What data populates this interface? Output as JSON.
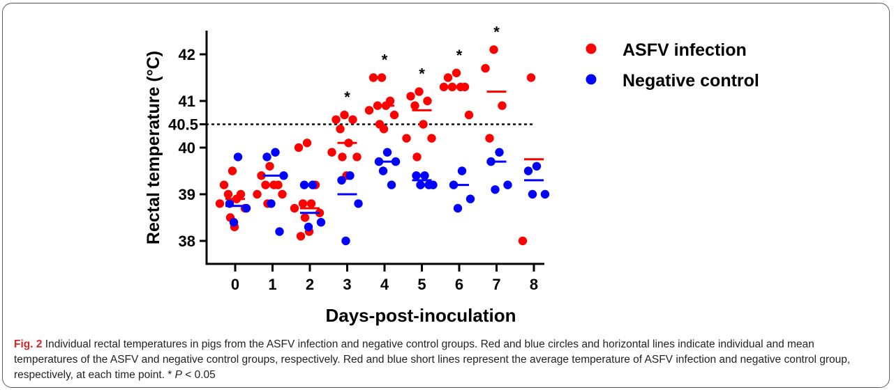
{
  "chart_data": {
    "type": "scatter",
    "xlabel": "Days-post-inoculation",
    "ylabel": "Rectal temperature (°C)",
    "categories": [
      "0",
      "1",
      "2",
      "3",
      "4",
      "5",
      "6",
      "7",
      "8"
    ],
    "ylim": [
      37.5,
      42.5
    ],
    "yticks": [
      38,
      39,
      40,
      41,
      42
    ],
    "ytick_labels": [
      "38",
      "39",
      "40",
      "41",
      "42"
    ],
    "threshold": {
      "value": 40.5,
      "label": "40.5",
      "style": "dotted"
    },
    "significance": {
      "days": [
        3,
        4,
        5,
        6,
        7
      ],
      "marker": "*"
    },
    "legend_position": "top-right",
    "series": [
      {
        "name": "ASFV infection",
        "color": "#ff0000",
        "means": [
          38.9,
          39.2,
          38.7,
          40.1,
          40.9,
          40.8,
          41.3,
          41.2,
          39.75
        ],
        "points": [
          [
            0,
            39.5
          ],
          [
            0,
            39.2
          ],
          [
            0,
            39.0
          ],
          [
            0,
            39.0
          ],
          [
            0,
            38.9
          ],
          [
            0,
            38.8
          ],
          [
            0,
            38.7
          ],
          [
            0,
            38.5
          ],
          [
            0,
            38.3
          ],
          [
            1,
            39.6
          ],
          [
            1,
            39.4
          ],
          [
            1,
            39.2
          ],
          [
            1,
            39.2
          ],
          [
            1,
            39.2
          ],
          [
            1,
            39.0
          ],
          [
            1,
            39.0
          ],
          [
            1,
            38.8
          ],
          [
            2,
            40.1
          ],
          [
            2,
            40.0
          ],
          [
            2,
            39.2
          ],
          [
            2,
            38.8
          ],
          [
            2,
            38.8
          ],
          [
            2,
            38.7
          ],
          [
            2,
            38.6
          ],
          [
            2,
            38.5
          ],
          [
            2,
            38.2
          ],
          [
            2,
            38.1
          ],
          [
            3,
            40.7
          ],
          [
            3,
            40.6
          ],
          [
            3,
            40.6
          ],
          [
            3,
            40.4
          ],
          [
            3,
            40.1
          ],
          [
            3,
            39.9
          ],
          [
            3,
            39.8
          ],
          [
            3,
            39.8
          ],
          [
            3,
            39.4
          ],
          [
            4,
            41.5
          ],
          [
            4,
            41.5
          ],
          [
            4,
            41.0
          ],
          [
            4,
            40.9
          ],
          [
            4,
            40.9
          ],
          [
            4,
            40.8
          ],
          [
            4,
            40.7
          ],
          [
            4,
            40.5
          ],
          [
            4,
            40.4
          ],
          [
            5,
            41.2
          ],
          [
            5,
            41.1
          ],
          [
            5,
            41.0
          ],
          [
            5,
            40.9
          ],
          [
            5,
            40.5
          ],
          [
            5,
            40.2
          ],
          [
            5,
            40.2
          ],
          [
            5,
            39.8
          ],
          [
            6,
            41.6
          ],
          [
            6,
            41.5
          ],
          [
            6,
            41.3
          ],
          [
            6,
            41.3
          ],
          [
            6,
            41.3
          ],
          [
            6,
            41.3
          ],
          [
            6,
            40.7
          ],
          [
            7,
            42.1
          ],
          [
            7,
            41.7
          ],
          [
            7,
            40.9
          ],
          [
            7,
            40.2
          ],
          [
            8,
            41.5
          ],
          [
            8,
            38.0
          ]
        ]
      },
      {
        "name": "Negative control",
        "color": "#0000ff",
        "means": [
          38.75,
          39.4,
          38.6,
          39.0,
          39.7,
          39.3,
          39.2,
          39.7,
          39.3
        ],
        "points": [
          [
            0,
            39.8
          ],
          [
            0,
            38.8
          ],
          [
            0,
            38.7
          ],
          [
            0,
            38.4
          ],
          [
            1,
            39.9
          ],
          [
            1,
            39.8
          ],
          [
            1,
            39.4
          ],
          [
            1,
            38.8
          ],
          [
            1,
            38.2
          ],
          [
            2,
            39.2
          ],
          [
            2,
            39.2
          ],
          [
            2,
            38.4
          ],
          [
            2,
            38.3
          ],
          [
            3,
            39.4
          ],
          [
            3,
            39.3
          ],
          [
            3,
            38.8
          ],
          [
            3,
            38.0
          ],
          [
            4,
            39.9
          ],
          [
            4,
            39.7
          ],
          [
            4,
            39.7
          ],
          [
            4,
            39.5
          ],
          [
            4,
            39.2
          ],
          [
            5,
            39.4
          ],
          [
            5,
            39.4
          ],
          [
            5,
            39.2
          ],
          [
            5,
            39.2
          ],
          [
            5,
            39.2
          ],
          [
            6,
            39.5
          ],
          [
            6,
            39.2
          ],
          [
            6,
            38.9
          ],
          [
            6,
            38.7
          ],
          [
            7,
            39.9
          ],
          [
            7,
            39.7
          ],
          [
            7,
            39.2
          ],
          [
            7,
            39.1
          ],
          [
            8,
            39.6
          ],
          [
            8,
            39.5
          ],
          [
            8,
            39.0
          ],
          [
            8,
            39.0
          ]
        ]
      }
    ]
  },
  "caption": {
    "label": "Fig. 2",
    "text": " Individual rectal temperatures in pigs from the ASFV infection and negative control groups. Red and blue circles and horizontal lines indicate individual and mean temperatures of the ASFV and negative control groups, respectively. Red and blue short lines represent the average temperature of ASFV infection and negative control group, respectively, at each time point. * ",
    "p_symbol": "P",
    "p_value": " < 0.05"
  }
}
